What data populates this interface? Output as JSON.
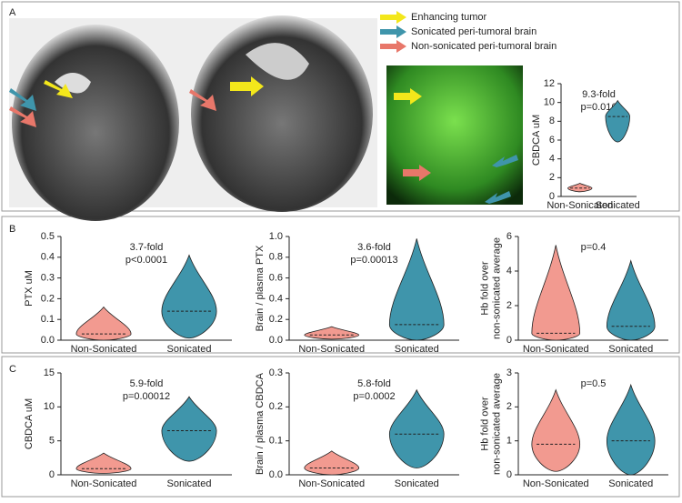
{
  "figure": {
    "panels": [
      "A",
      "B",
      "C"
    ],
    "legend": [
      {
        "label": "Enhancing tumor",
        "color": "#f3e71b"
      },
      {
        "label": "Sonicated peri-tumoral brain",
        "color": "#3f95ab"
      },
      {
        "label": "Non-sonicated peri-tumoral brain",
        "color": "#e8776a"
      }
    ]
  },
  "chart_data": [
    {
      "type": "violin",
      "ylabel": [
        "CBDCA uM"
      ],
      "annotation": [
        "9.3-fold",
        "p=0.016"
      ],
      "categories": [
        "Non-Sonicated",
        "Sonicated"
      ],
      "colors": [
        "#f29a90",
        "#3f95ab"
      ],
      "min": [
        0.5,
        5.8
      ],
      "median": [
        0.9,
        8.5
      ],
      "max": [
        1.4,
        10.2
      ],
      "ylim": [
        0,
        12
      ],
      "yticks": [
        0,
        2,
        4,
        6,
        8,
        10,
        12
      ]
    },
    {
      "type": "violin",
      "ylabel": [
        "PTX uM"
      ],
      "annotation": [
        "3.7-fold",
        "p<0.0001"
      ],
      "categories": [
        "Non-Sonicated",
        "Sonicated"
      ],
      "colors": [
        "#f29a90",
        "#3f95ab"
      ],
      "min": [
        0,
        0.01
      ],
      "median": [
        0.03,
        0.14
      ],
      "max": [
        0.16,
        0.41
      ],
      "ylim": [
        0,
        0.5
      ],
      "yticks": [
        {
          "value": 0,
          "label": "0.0"
        },
        0.1,
        0.2,
        0.3,
        0.4,
        0.5
      ]
    },
    {
      "type": "violin",
      "ylabel": [
        "Brain / plasma PTX"
      ],
      "annotation": [
        "3.6-fold",
        "p=0.00013"
      ],
      "categories": [
        "Non-Sonicated",
        "Sonicated"
      ],
      "colors": [
        "#f29a90",
        "#3f95ab"
      ],
      "min": [
        0.01,
        0
      ],
      "median": [
        0.05,
        0.15
      ],
      "max": [
        0.13,
        0.98
      ],
      "ylim": [
        0,
        1
      ],
      "yticks": [
        {
          "value": 0,
          "label": "0.0"
        },
        0.2,
        0.4,
        0.6,
        0.8,
        {
          "value": 1,
          "label": "1.0"
        }
      ]
    },
    {
      "type": "violin",
      "ylabel": [
        "Hb fold over",
        "non-sonicated average"
      ],
      "annotation": [
        "p=0.4"
      ],
      "categories": [
        "Non-Sonicated",
        "Sonicated"
      ],
      "colors": [
        "#f29a90",
        "#3f95ab"
      ],
      "min": [
        0,
        0
      ],
      "median": [
        0.4,
        0.8
      ],
      "max": [
        5.5,
        4.6
      ],
      "ylim": [
        0,
        6
      ],
      "yticks": [
        0,
        2,
        4,
        6
      ]
    },
    {
      "type": "violin",
      "ylabel": [
        "CBDCA uM"
      ],
      "annotation": [
        "5.9-fold",
        "p=0.00012"
      ],
      "categories": [
        "Non-Sonicated",
        "Sonicated"
      ],
      "colors": [
        "#f29a90",
        "#3f95ab"
      ],
      "min": [
        0.2,
        2
      ],
      "median": [
        0.9,
        6.5
      ],
      "max": [
        3.2,
        11.5
      ],
      "ylim": [
        0,
        15
      ],
      "yticks": [
        0,
        5,
        10,
        15
      ]
    },
    {
      "type": "violin",
      "ylabel": [
        "Brain / plasma CBDCA"
      ],
      "annotation": [
        "5.8-fold",
        "p=0.0002"
      ],
      "categories": [
        "Non-Sonicated",
        "Sonicated"
      ],
      "colors": [
        "#f29a90",
        "#3f95ab"
      ],
      "min": [
        0,
        0.02
      ],
      "median": [
        0.02,
        0.12
      ],
      "max": [
        0.07,
        0.25
      ],
      "ylim": [
        0,
        0.3
      ],
      "yticks": [
        {
          "value": 0,
          "label": "0.0"
        },
        0.1,
        0.2,
        0.3
      ]
    },
    {
      "type": "violin",
      "ylabel": [
        "Hb fold over",
        "non-sonicated average"
      ],
      "annotation": [
        "p=0.5"
      ],
      "categories": [
        "Non-Sonicated",
        "Sonicated"
      ],
      "colors": [
        "#f29a90",
        "#3f95ab"
      ],
      "min": [
        0.1,
        0
      ],
      "median": [
        0.9,
        1
      ],
      "max": [
        2.5,
        2.65
      ],
      "ylim": [
        0,
        3
      ],
      "yticks": [
        0,
        1,
        2,
        3
      ]
    }
  ]
}
